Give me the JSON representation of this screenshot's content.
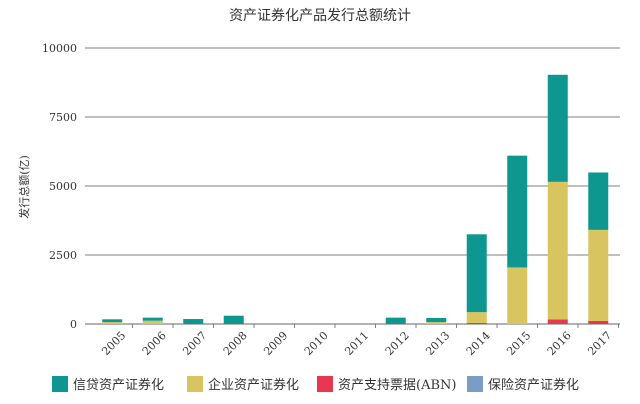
{
  "chart_data": {
    "type": "bar",
    "stacked": true,
    "title": "资产证券化产品发行总额统计",
    "ylabel": "发行总额(亿)",
    "xlabel": "",
    "ylim": [
      0,
      10000
    ],
    "yticks": [
      0,
      2500,
      5000,
      7500,
      10000
    ],
    "ytick_labels": [
      "0",
      "2500",
      "5000",
      "7500",
      "10000"
    ],
    "categories": [
      "2005",
      "2006",
      "2007",
      "2008",
      "2009",
      "2010",
      "2011",
      "2012",
      "2013",
      "2014",
      "2015",
      "2016",
      "2017"
    ],
    "series": [
      {
        "name": "资产支持票据(ABN)",
        "color": "#e8384f",
        "values": [
          0,
          0,
          0,
          0,
          0,
          0,
          0,
          0,
          0,
          40,
          0,
          170,
          110
        ]
      },
      {
        "name": "企业资产证券化",
        "color": "#d9c560",
        "values": [
          70,
          120,
          0,
          0,
          0,
          0,
          0,
          0,
          70,
          390,
          2050,
          4980,
          3300
        ]
      },
      {
        "name": "信贷资产证券化",
        "color": "#0e9790",
        "values": [
          100,
          110,
          180,
          300,
          0,
          0,
          0,
          230,
          150,
          2820,
          4050,
          3880,
          2080
        ]
      },
      {
        "name": "保险资产证券化",
        "color": "#7a9dc6",
        "values": [
          0,
          0,
          0,
          0,
          0,
          0,
          0,
          0,
          0,
          0,
          0,
          0,
          0
        ]
      }
    ],
    "legend": {
      "position": "bottom",
      "order": [
        "信贷资产证券化",
        "企业资产证券化",
        "资产支持票据(ABN)",
        "保险资产证券化"
      ]
    },
    "grid": true
  }
}
